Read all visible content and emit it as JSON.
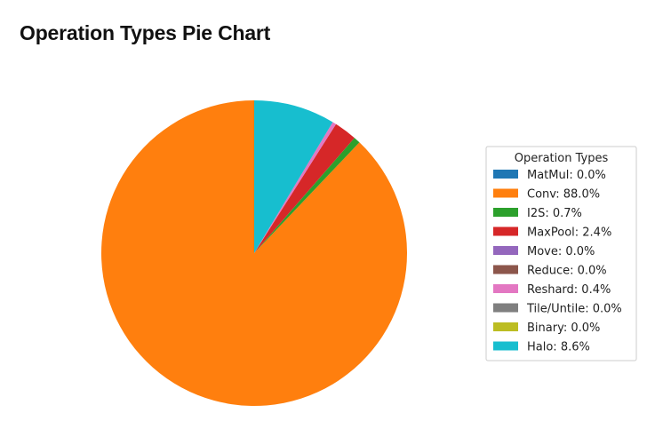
{
  "page": {
    "title": "Operation Types Pie Chart"
  },
  "chart_data": {
    "type": "pie",
    "start_angle_deg": 90,
    "direction": "counterclockwise",
    "legend": {
      "title": "Operation Types",
      "placement": "right"
    },
    "slices": [
      {
        "label": "MatMul: 0.0%",
        "name": "MatMul",
        "value": 0.0,
        "color": "#1f77b4"
      },
      {
        "label": "Conv: 88.0%",
        "name": "Conv",
        "value": 88.0,
        "color": "#ff7f0e"
      },
      {
        "label": "I2S: 0.7%",
        "name": "I2S",
        "value": 0.7,
        "color": "#2ca02c"
      },
      {
        "label": "MaxPool: 2.4%",
        "name": "MaxPool",
        "value": 2.4,
        "color": "#d62728"
      },
      {
        "label": "Move: 0.0%",
        "name": "Move",
        "value": 0.0,
        "color": "#9467bd"
      },
      {
        "label": "Reduce: 0.0%",
        "name": "Reduce",
        "value": 0.0,
        "color": "#8c564b"
      },
      {
        "label": "Reshard: 0.4%",
        "name": "Reshard",
        "value": 0.4,
        "color": "#e377c2"
      },
      {
        "label": "Tile/Untile: 0.0%",
        "name": "Tile/Untile",
        "value": 0.0,
        "color": "#7f7f7f"
      },
      {
        "label": "Binary: 0.0%",
        "name": "Binary",
        "value": 0.0,
        "color": "#bcbd22"
      },
      {
        "label": "Halo: 8.6%",
        "name": "Halo",
        "value": 8.6,
        "color": "#17becf"
      }
    ]
  }
}
